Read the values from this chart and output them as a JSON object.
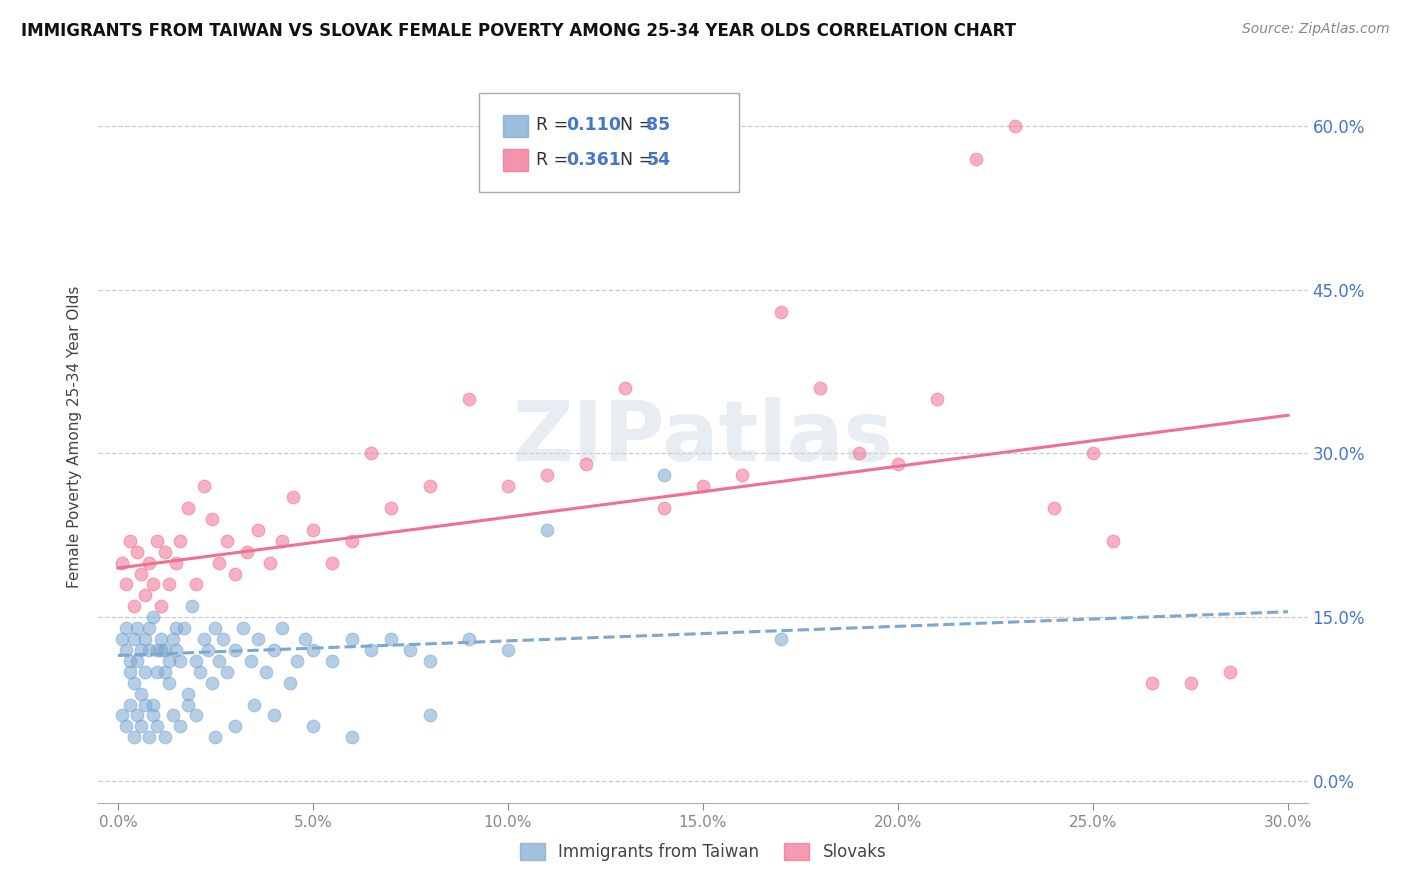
{
  "title": "IMMIGRANTS FROM TAIWAN VS SLOVAK FEMALE POVERTY AMONG 25-34 YEAR OLDS CORRELATION CHART",
  "source": "Source: ZipAtlas.com",
  "ylabel": "Female Poverty Among 25-34 Year Olds",
  "xlim": [
    -0.005,
    0.305
  ],
  "ylim": [
    -0.02,
    0.65
  ],
  "ytick_vals": [
    0.0,
    0.15,
    0.3,
    0.45,
    0.6
  ],
  "xtick_vals": [
    0.0,
    0.05,
    0.1,
    0.15,
    0.2,
    0.25,
    0.3
  ],
  "taiwan_color": "#7BA7D0",
  "slovak_color": "#F07090",
  "taiwan_R": 0.11,
  "taiwan_N": 85,
  "slovak_R": 0.361,
  "slovak_N": 54,
  "taiwan_trend_x": [
    0.0,
    0.3
  ],
  "taiwan_trend_y": [
    0.115,
    0.155
  ],
  "slovak_trend_x": [
    0.0,
    0.3
  ],
  "slovak_trend_y": [
    0.195,
    0.335
  ],
  "watermark": "ZIPatlas",
  "taiwan_x": [
    0.001,
    0.002,
    0.002,
    0.003,
    0.003,
    0.004,
    0.004,
    0.005,
    0.005,
    0.006,
    0.006,
    0.007,
    0.007,
    0.008,
    0.008,
    0.009,
    0.009,
    0.01,
    0.01,
    0.011,
    0.011,
    0.012,
    0.012,
    0.013,
    0.013,
    0.014,
    0.015,
    0.015,
    0.016,
    0.017,
    0.018,
    0.019,
    0.02,
    0.021,
    0.022,
    0.023,
    0.024,
    0.025,
    0.026,
    0.027,
    0.028,
    0.03,
    0.032,
    0.034,
    0.036,
    0.038,
    0.04,
    0.042,
    0.044,
    0.046,
    0.048,
    0.05,
    0.055,
    0.06,
    0.065,
    0.07,
    0.075,
    0.08,
    0.09,
    0.1,
    0.001,
    0.002,
    0.003,
    0.004,
    0.005,
    0.006,
    0.007,
    0.008,
    0.009,
    0.01,
    0.012,
    0.014,
    0.016,
    0.018,
    0.02,
    0.025,
    0.03,
    0.035,
    0.04,
    0.05,
    0.06,
    0.08,
    0.11,
    0.14,
    0.17
  ],
  "taiwan_y": [
    0.13,
    0.12,
    0.14,
    0.1,
    0.11,
    0.09,
    0.13,
    0.11,
    0.14,
    0.08,
    0.12,
    0.13,
    0.1,
    0.14,
    0.12,
    0.07,
    0.15,
    0.12,
    0.1,
    0.12,
    0.13,
    0.1,
    0.12,
    0.09,
    0.11,
    0.13,
    0.12,
    0.14,
    0.11,
    0.14,
    0.08,
    0.16,
    0.11,
    0.1,
    0.13,
    0.12,
    0.09,
    0.14,
    0.11,
    0.13,
    0.1,
    0.12,
    0.14,
    0.11,
    0.13,
    0.1,
    0.12,
    0.14,
    0.09,
    0.11,
    0.13,
    0.12,
    0.11,
    0.13,
    0.12,
    0.13,
    0.12,
    0.11,
    0.13,
    0.12,
    0.06,
    0.05,
    0.07,
    0.04,
    0.06,
    0.05,
    0.07,
    0.04,
    0.06,
    0.05,
    0.04,
    0.06,
    0.05,
    0.07,
    0.06,
    0.04,
    0.05,
    0.07,
    0.06,
    0.05,
    0.04,
    0.06,
    0.23,
    0.28,
    0.13
  ],
  "slovak_x": [
    0.001,
    0.002,
    0.003,
    0.004,
    0.005,
    0.006,
    0.007,
    0.008,
    0.009,
    0.01,
    0.011,
    0.012,
    0.013,
    0.015,
    0.016,
    0.018,
    0.02,
    0.022,
    0.024,
    0.026,
    0.028,
    0.03,
    0.033,
    0.036,
    0.039,
    0.042,
    0.045,
    0.05,
    0.055,
    0.06,
    0.065,
    0.07,
    0.08,
    0.09,
    0.1,
    0.11,
    0.12,
    0.13,
    0.14,
    0.15,
    0.16,
    0.17,
    0.18,
    0.19,
    0.2,
    0.21,
    0.22,
    0.23,
    0.24,
    0.25,
    0.255,
    0.265,
    0.275,
    0.285
  ],
  "slovak_y": [
    0.2,
    0.18,
    0.22,
    0.16,
    0.21,
    0.19,
    0.17,
    0.2,
    0.18,
    0.22,
    0.16,
    0.21,
    0.18,
    0.2,
    0.22,
    0.25,
    0.18,
    0.27,
    0.24,
    0.2,
    0.22,
    0.19,
    0.21,
    0.23,
    0.2,
    0.22,
    0.26,
    0.23,
    0.2,
    0.22,
    0.3,
    0.25,
    0.27,
    0.35,
    0.27,
    0.28,
    0.29,
    0.36,
    0.25,
    0.27,
    0.28,
    0.43,
    0.36,
    0.3,
    0.29,
    0.35,
    0.57,
    0.6,
    0.25,
    0.3,
    0.22,
    0.09,
    0.09,
    0.1
  ]
}
